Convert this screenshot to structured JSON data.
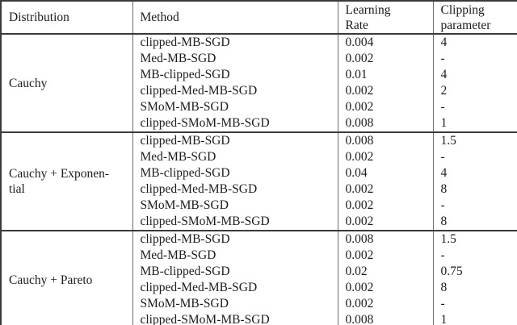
{
  "table": {
    "headers": {
      "distribution": "Distribution",
      "method": "Method",
      "learning_rate": "Learning\nRate",
      "clipping": "Clipping\nparameter"
    },
    "groups": [
      {
        "label": "Cauchy"
      },
      {
        "label": "Cauchy + Exponen-\ntial"
      },
      {
        "label": "Cauchy + Pareto"
      }
    ],
    "rows": [
      {
        "method": "clipped-MB-SGD",
        "lr": "0.004",
        "clip": "4"
      },
      {
        "method": "Med-MB-SGD",
        "lr": "0.002",
        "clip": "-"
      },
      {
        "method": "MB-clipped-SGD",
        "lr": "0.01",
        "clip": "4"
      },
      {
        "method": "clipped-Med-MB-SGD",
        "lr": "0.002",
        "clip": "2"
      },
      {
        "method": "SMoM-MB-SGD",
        "lr": "0.002",
        "clip": "-"
      },
      {
        "method": "clipped-SMoM-MB-SGD",
        "lr": "0.008",
        "clip": "1"
      },
      {
        "method": "clipped-MB-SGD",
        "lr": "0.008",
        "clip": "1.5"
      },
      {
        "method": "Med-MB-SGD",
        "lr": "0.002",
        "clip": "-"
      },
      {
        "method": "MB-clipped-SGD",
        "lr": "0.04",
        "clip": "4"
      },
      {
        "method": "clipped-Med-MB-SGD",
        "lr": "0.002",
        "clip": "8"
      },
      {
        "method": "SMoM-MB-SGD",
        "lr": "0.002",
        "clip": "-"
      },
      {
        "method": "clipped-SMoM-MB-SGD",
        "lr": "0.002",
        "clip": "8"
      },
      {
        "method": "clipped-MB-SGD",
        "lr": "0.008",
        "clip": "1.5"
      },
      {
        "method": "Med-MB-SGD",
        "lr": "0.002",
        "clip": "-"
      },
      {
        "method": "MB-clipped-SGD",
        "lr": "0.02",
        "clip": "0.75"
      },
      {
        "method": "clipped-Med-MB-SGD",
        "lr": "0.002",
        "clip": "8"
      },
      {
        "method": "SMoM-MB-SGD",
        "lr": "0.002",
        "clip": "-"
      },
      {
        "method": "clipped-SMoM-MB-SGD",
        "lr": "0.008",
        "clip": "1"
      }
    ]
  }
}
